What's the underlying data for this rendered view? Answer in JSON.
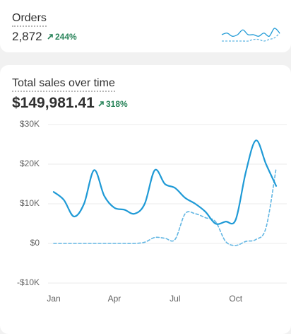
{
  "orders_card": {
    "title": "Orders",
    "value": "2,872",
    "change": "244%",
    "sparkline": {
      "current": [
        5,
        6,
        4,
        5,
        8,
        5,
        5,
        4,
        6,
        4,
        9,
        6
      ],
      "previous": [
        1,
        1,
        1,
        1,
        1,
        1,
        2,
        2,
        1,
        2,
        3,
        6
      ]
    }
  },
  "sales_card": {
    "title": "Total sales over time",
    "value": "$149,981.41",
    "change": "318%",
    "chart": {
      "type": "line",
      "categories": [
        "Jan",
        null,
        null,
        null,
        null,
        null,
        "Apr",
        null,
        null,
        null,
        null,
        null,
        "Jul",
        null,
        null,
        null,
        null,
        null,
        "Oct",
        null,
        null,
        null,
        null
      ],
      "series": [
        {
          "color": "#1f9ad6",
          "style": "solid",
          "values": [
            13000,
            11000,
            6800,
            10000,
            18500,
            12000,
            9000,
            8500,
            7500,
            10000,
            18500,
            15000,
            14000,
            11500,
            10000,
            8000,
            5000,
            5500,
            6000,
            18000,
            26000,
            20000,
            14500
          ]
        },
        {
          "color": "#62b6e3",
          "style": "dashed",
          "values": [
            0,
            0,
            0,
            0,
            0,
            0,
            0,
            0,
            0,
            300,
            1500,
            1300,
            1000,
            7500,
            7500,
            6500,
            5500,
            500,
            -500,
            500,
            1000,
            4000,
            19000
          ]
        }
      ],
      "ylim": [
        -10000,
        30000
      ],
      "yticks": [
        {
          "value": -10000,
          "label": "-$10K"
        },
        {
          "value": 0,
          "label": "$0"
        },
        {
          "value": 10000,
          "label": "$10K"
        },
        {
          "value": 20000,
          "label": "$20K"
        },
        {
          "value": 30000,
          "label": "$30K"
        }
      ],
      "grid": true
    }
  }
}
